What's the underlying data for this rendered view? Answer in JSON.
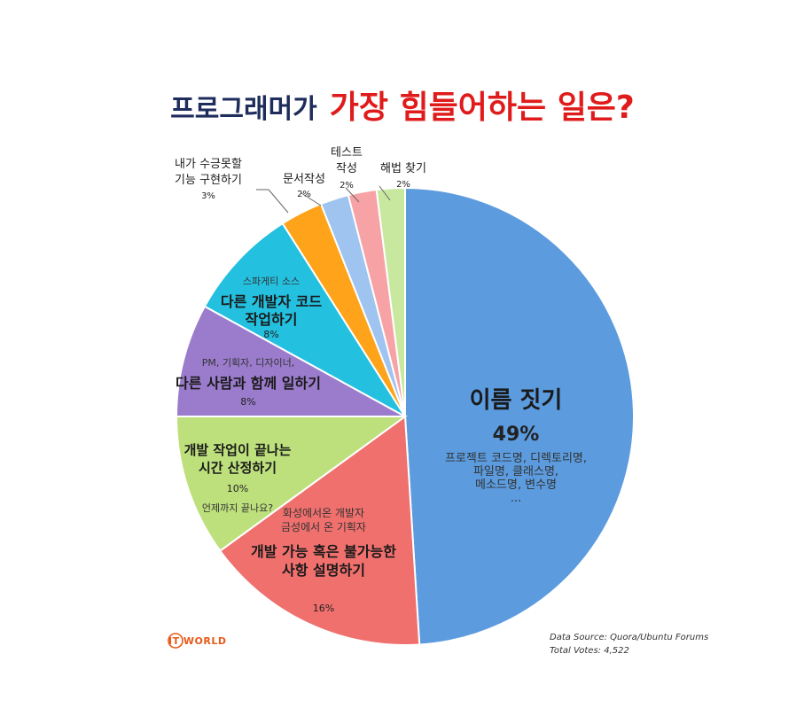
{
  "chart_data": {
    "type": "pie",
    "title_part1": "프로그래머가",
    "title_part2": "가장 힘들어하는 일은?",
    "slices": [
      {
        "main": [
          "이름 짓기"
        ],
        "percent_label": "49%",
        "sub": [
          "프로젝트 코드명, 디렉토리명,",
          "파일명, 클래스명,",
          "메소드명, 변수명",
          "..."
        ],
        "value": 49,
        "color": "#5b9bde"
      },
      {
        "main": [
          "개발 가능 혹은 불가능한",
          "사항 설명하기"
        ],
        "pre": [
          "화성에서온 개발자",
          "금성에서 온 기획자"
        ],
        "percent_label": "16%",
        "value": 16,
        "color": "#f0706e"
      },
      {
        "main": [
          "개발 작업이 끝나는",
          "시간 산정하기"
        ],
        "percent_label": "10%",
        "sub": [
          "언제까지 끝나요?"
        ],
        "value": 10,
        "color": "#bde07d"
      },
      {
        "main": [
          "다른 사람과 함께 일하기"
        ],
        "pre": [
          "PM, 기획자, 디자이너,"
        ],
        "percent_label": "8%",
        "value": 8,
        "color": "#9b7ccc"
      },
      {
        "main": [
          "다른 개발자 코드",
          "작업하기"
        ],
        "pre": [
          "스파게티 소스"
        ],
        "percent_label": "8%",
        "value": 8,
        "color": "#23c0df"
      },
      {
        "main": [
          "내가 수긍못할",
          "기능 구현하기"
        ],
        "percent_label": "3%",
        "value": 3,
        "color": "#ffa31a"
      },
      {
        "main": [
          "문서작성"
        ],
        "percent_label": "2%",
        "value": 2,
        "color": "#9ec4ef"
      },
      {
        "main": [
          "테스트",
          "작성"
        ],
        "percent_label": "2%",
        "value": 2,
        "color": "#f7a3a6"
      },
      {
        "main": [
          "해법 찾기"
        ],
        "percent_label": "2%",
        "value": 2,
        "color": "#c8e8a0"
      }
    ],
    "source_line1": "Data Source: Quora/Ubuntu Forums",
    "source_line2": "Total Votes: 4,522",
    "logo_text": "IT WORLD"
  }
}
